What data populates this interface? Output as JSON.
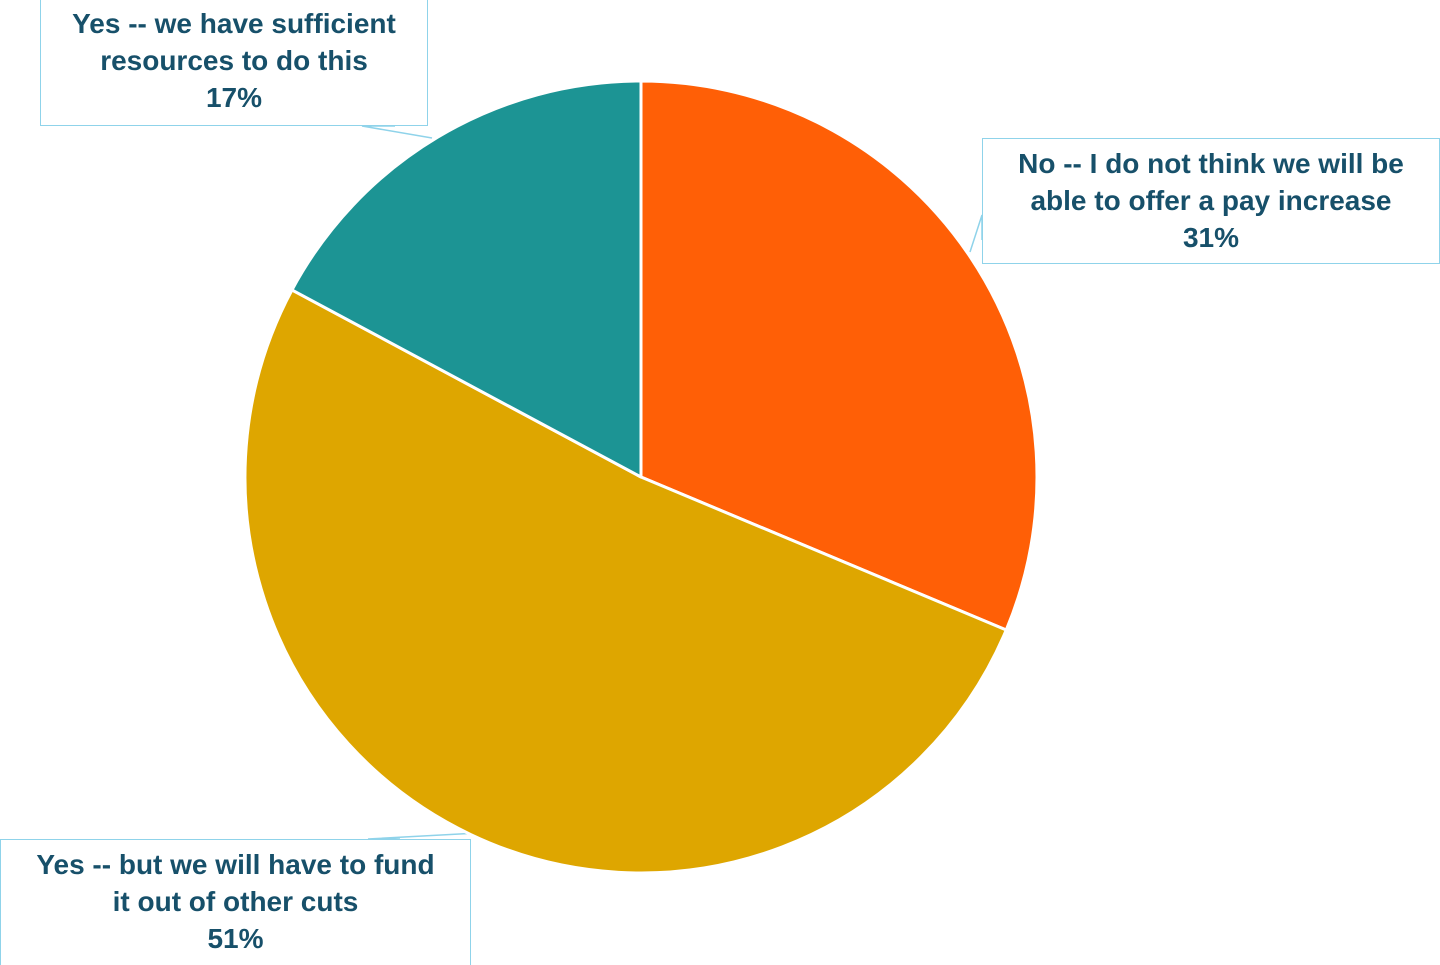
{
  "chart_data": {
    "type": "pie",
    "start_angle_deg": 0,
    "direction": "clockwise",
    "slices": [
      {
        "label_lines": [
          "No -- I do not think we will be",
          "able to offer a pay increase"
        ],
        "value": 31,
        "value_label": "31%",
        "color": "#ff5f06"
      },
      {
        "label_lines": [
          "Yes -- but we will have to fund",
          "it out of other cuts"
        ],
        "value": 51,
        "value_label": "51%",
        "color": "#dea600"
      },
      {
        "label_lines": [
          "Yes -- we have sufficient",
          "resources to do this"
        ],
        "value": 17,
        "value_label": "17%",
        "color": "#1c9494"
      }
    ],
    "legend": "none",
    "data_labels": "callouts"
  }
}
